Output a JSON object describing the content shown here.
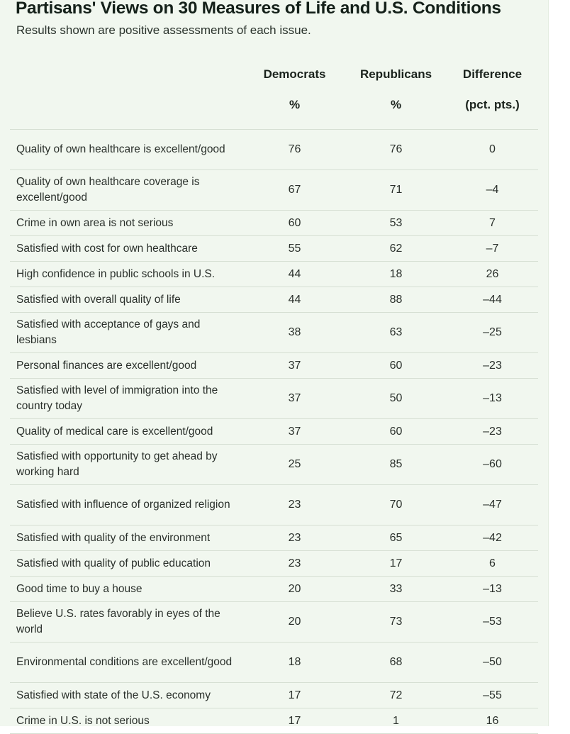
{
  "title": "Partisans' Views on 30 Measures of Life and U.S. Conditions",
  "subtitle": "Results shown are positive assessments of each issue.",
  "colors": {
    "panel_background": "#f1f7ef",
    "divider": "#d6dfd3",
    "text": "#2a302b"
  },
  "chart_data": {
    "type": "table",
    "columns": [
      {
        "name": "Democrats",
        "unit": "%"
      },
      {
        "name": "Republicans",
        "unit": "%"
      },
      {
        "name": "Difference",
        "unit": "(pct. pts.)"
      }
    ],
    "rows": [
      {
        "label": "Quality of own healthcare is excellent/good",
        "values": [
          "76",
          "76",
          "0"
        ]
      },
      {
        "label": "Quality of own healthcare coverage is excellent/good",
        "values": [
          "67",
          "71",
          "–4"
        ]
      },
      {
        "label": "Crime in own area is not serious",
        "values": [
          "60",
          "53",
          "7"
        ]
      },
      {
        "label": "Satisfied with cost for own healthcare",
        "values": [
          "55",
          "62",
          "–7"
        ]
      },
      {
        "label": "High confidence in public schools in U.S.",
        "values": [
          "44",
          "18",
          "26"
        ]
      },
      {
        "label": "Satisfied with overall quality of life",
        "values": [
          "44",
          "88",
          "–44"
        ]
      },
      {
        "label": "Satisfied with acceptance of gays and lesbians",
        "values": [
          "38",
          "63",
          "–25"
        ]
      },
      {
        "label": "Personal finances are excellent/good",
        "values": [
          "37",
          "60",
          "–23"
        ]
      },
      {
        "label": "Satisfied with level of immigration into the country today",
        "values": [
          "37",
          "50",
          "–13"
        ]
      },
      {
        "label": "Quality of medical care is excellent/good",
        "values": [
          "37",
          "60",
          "–23"
        ]
      },
      {
        "label": "Satisfied with opportunity to get ahead by working hard",
        "values": [
          "25",
          "85",
          "–60"
        ]
      },
      {
        "label": "Satisfied with influence of organized religion",
        "values": [
          "23",
          "70",
          "–47"
        ]
      },
      {
        "label": "Satisfied with quality of the environment",
        "values": [
          "23",
          "65",
          "–42"
        ]
      },
      {
        "label": "Satisfied with quality of public education",
        "values": [
          "23",
          "17",
          "6"
        ]
      },
      {
        "label": "Good time to buy a house",
        "values": [
          "20",
          "33",
          "–13"
        ]
      },
      {
        "label": "Believe U.S. rates favorably in eyes of the world",
        "values": [
          "20",
          "73",
          "–53"
        ]
      },
      {
        "label": "Environmental conditions are excellent/good",
        "values": [
          "18",
          "68",
          "–50"
        ]
      },
      {
        "label": "Satisfied with state of the U.S. economy",
        "values": [
          "17",
          "72",
          "–55"
        ]
      },
      {
        "label": "Crime in U.S. is not serious",
        "values": [
          "17",
          "1",
          "16"
        ]
      }
    ]
  }
}
